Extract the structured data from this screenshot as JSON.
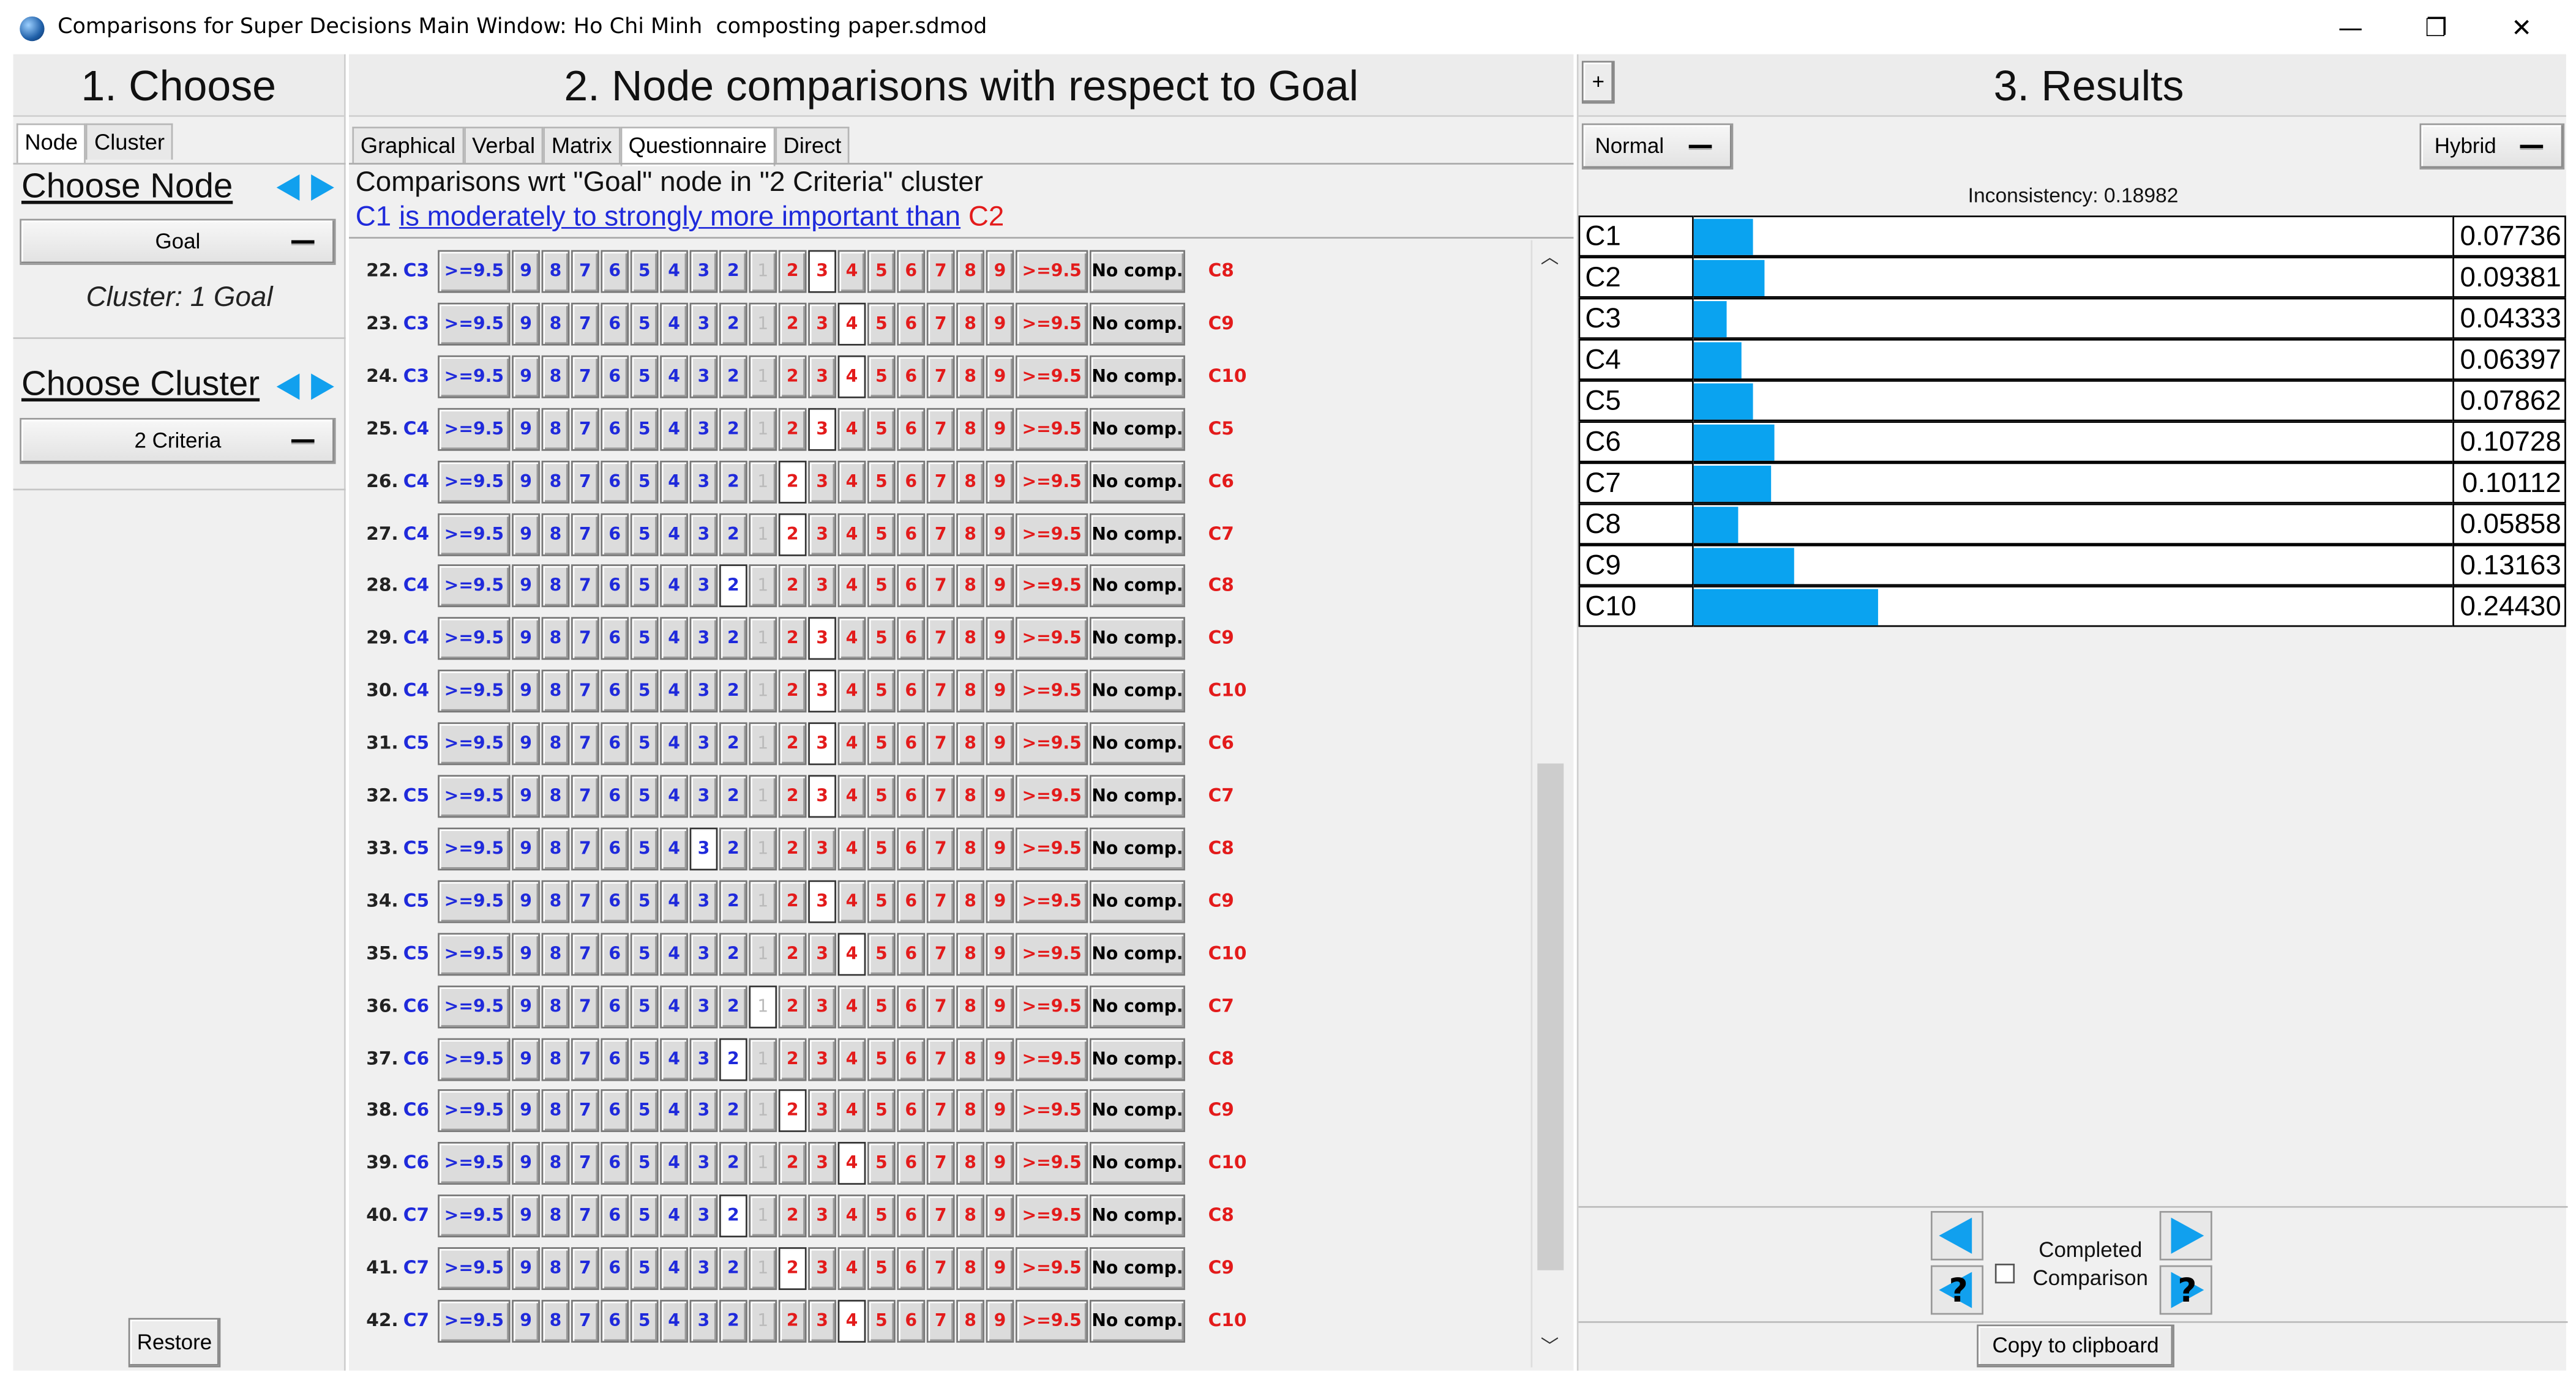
{
  "window": {
    "title": "Comparisons for Super Decisions Main Window: Ho Chi Minh  composting paper.sdmod",
    "minimize": "—",
    "maximize": "❐",
    "close": "✕"
  },
  "choose": {
    "header": "1. Choose",
    "tabs": [
      "Node",
      "Cluster"
    ],
    "choose_node_label": "Choose Node",
    "node_value": "Goal",
    "cluster_caption": "Cluster: 1 Goal",
    "choose_cluster_label": "Choose Cluster",
    "cluster_value": "2 Criteria",
    "restore": "Restore"
  },
  "comparisons": {
    "header": "2. Node comparisons with respect to Goal",
    "tabs": [
      "Graphical",
      "Verbal",
      "Matrix",
      "Questionnaire",
      "Direct"
    ],
    "active_tab": "Questionnaire",
    "info_line": "Comparisons wrt \"Goal\" node in \"2 Criteria\" cluster",
    "statement_left": "C1",
    "statement_text": "is moderately to strongly more important than",
    "statement_right": "C2",
    "left_labels": [
      ">=9.5",
      "9",
      "8",
      "7",
      "6",
      "5",
      "4",
      "3",
      "2"
    ],
    "one_label": "1",
    "right_labels": [
      "2",
      "3",
      "4",
      "5",
      "6",
      "7",
      "8",
      "9",
      ">=9.5"
    ],
    "no_comp": "No comp.",
    "rows": [
      {
        "num": "22.",
        "left": "C3",
        "right": "C8",
        "selected": "r3"
      },
      {
        "num": "23.",
        "left": "C3",
        "right": "C9",
        "selected": "r4"
      },
      {
        "num": "24.",
        "left": "C3",
        "right": "C10",
        "selected": "r4"
      },
      {
        "num": "25.",
        "left": "C4",
        "right": "C5",
        "selected": "r3"
      },
      {
        "num": "26.",
        "left": "C4",
        "right": "C6",
        "selected": "r2"
      },
      {
        "num": "27.",
        "left": "C4",
        "right": "C7",
        "selected": "r2"
      },
      {
        "num": "28.",
        "left": "C4",
        "right": "C8",
        "selected": "l2"
      },
      {
        "num": "29.",
        "left": "C4",
        "right": "C9",
        "selected": "r3"
      },
      {
        "num": "30.",
        "left": "C4",
        "right": "C10",
        "selected": "r3"
      },
      {
        "num": "31.",
        "left": "C5",
        "right": "C6",
        "selected": "r3"
      },
      {
        "num": "32.",
        "left": "C5",
        "right": "C7",
        "selected": "r3"
      },
      {
        "num": "33.",
        "left": "C5",
        "right": "C8",
        "selected": "l3"
      },
      {
        "num": "34.",
        "left": "C5",
        "right": "C9",
        "selected": "r3"
      },
      {
        "num": "35.",
        "left": "C5",
        "right": "C10",
        "selected": "r4"
      },
      {
        "num": "36.",
        "left": "C6",
        "right": "C7",
        "selected": "one"
      },
      {
        "num": "37.",
        "left": "C6",
        "right": "C8",
        "selected": "l2"
      },
      {
        "num": "38.",
        "left": "C6",
        "right": "C9",
        "selected": "r2"
      },
      {
        "num": "39.",
        "left": "C6",
        "right": "C10",
        "selected": "r4"
      },
      {
        "num": "40.",
        "left": "C7",
        "right": "C8",
        "selected": "l2"
      },
      {
        "num": "41.",
        "left": "C7",
        "right": "C9",
        "selected": "r2"
      },
      {
        "num": "42.",
        "left": "C7",
        "right": "C10",
        "selected": "r4"
      }
    ]
  },
  "results": {
    "plus": "+",
    "header": "3. Results",
    "mode_left": "Normal",
    "mode_right": "Hybrid",
    "inconsistency": "Inconsistency: 0.18982",
    "items": [
      {
        "name": "C1",
        "value": "0.07736",
        "fraction": 0.07736
      },
      {
        "name": "C2",
        "value": "0.09381",
        "fraction": 0.09381
      },
      {
        "name": "C3",
        "value": "0.04333",
        "fraction": 0.04333
      },
      {
        "name": "C4",
        "value": "0.06397",
        "fraction": 0.06397
      },
      {
        "name": "C5",
        "value": "0.07862",
        "fraction": 0.07862
      },
      {
        "name": "C6",
        "value": "0.10728",
        "fraction": 0.10728
      },
      {
        "name": "C7",
        "value": "0.10112",
        "fraction": 0.10112
      },
      {
        "name": "C8",
        "value": "0.05858",
        "fraction": 0.05858
      },
      {
        "name": "C9",
        "value": "0.13163",
        "fraction": 0.13163
      },
      {
        "name": "C10",
        "value": "0.24430",
        "fraction": 0.2443
      }
    ],
    "completed_label_1": "Completed",
    "completed_label_2": "Comparison",
    "copy": "Copy to clipboard",
    "help_glyph": "?",
    "accent_color": "#0aa3f0"
  }
}
